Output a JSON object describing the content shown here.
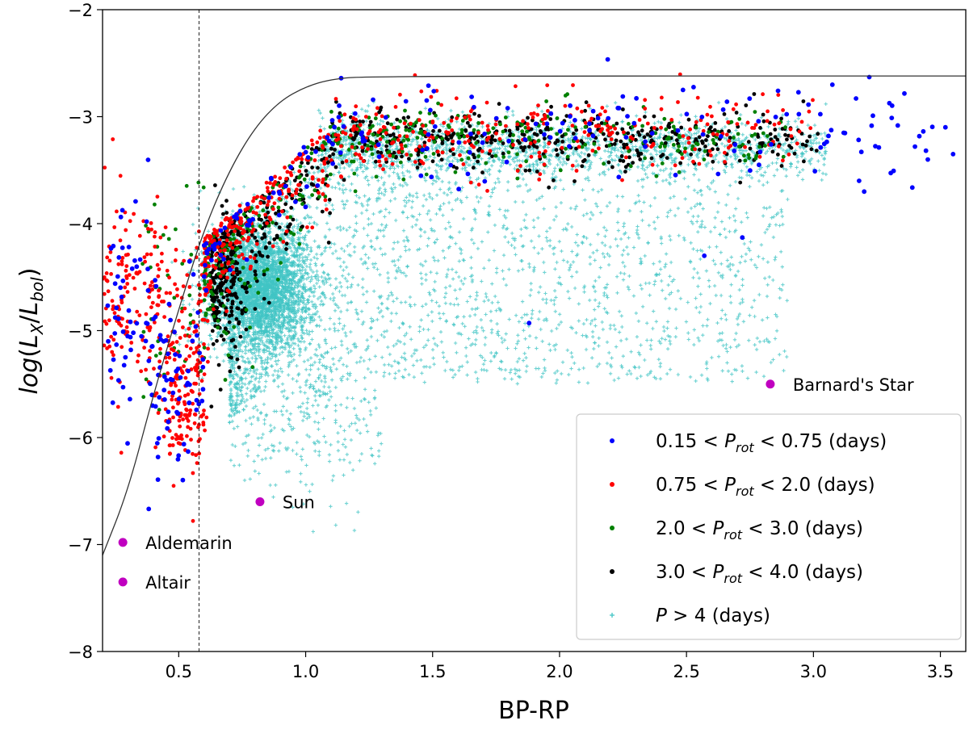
{
  "chart_data": {
    "type": "scatter",
    "xlabel": "BP-RP",
    "ylabel": "log(L_X/L_bol)",
    "xlim": [
      0.2,
      3.6
    ],
    "ylim": [
      -8,
      -2
    ],
    "xticks": [
      "0.5",
      "1.0",
      "1.5",
      "2.0",
      "2.5",
      "3.0",
      "3.5"
    ],
    "yticks": [
      "−8",
      "−7",
      "−6",
      "−5",
      "−4",
      "−3",
      "−2"
    ],
    "grid": false,
    "legend_position": "lower-right",
    "colors": {
      "p1": "#0000ff",
      "p2": "#ff0000",
      "p3": "#008000",
      "p4": "#000000",
      "p5": "#40c4c4",
      "stars": "#c000c0"
    },
    "vertical_line_x": 0.58,
    "saturation_curve": [
      [
        0.2,
        -7.1
      ],
      [
        0.3,
        -6.5
      ],
      [
        0.4,
        -5.6
      ],
      [
        0.5,
        -4.8
      ],
      [
        0.6,
        -4.05
      ],
      [
        0.7,
        -3.5
      ],
      [
        0.8,
        -3.1
      ],
      [
        0.9,
        -2.85
      ],
      [
        1.0,
        -2.72
      ],
      [
        1.1,
        -2.65
      ],
      [
        1.25,
        -2.62
      ],
      [
        3.6,
        -2.62
      ]
    ],
    "series": [
      {
        "name": "0.15 < P_rot < 0.75 (days)",
        "legend_prefix": "0.15 < ",
        "legend_suffix": " < 0.75 (days)",
        "color_key": "p1"
      },
      {
        "name": "0.75 < P_rot < 2.0 (days)",
        "legend_prefix": "0.75 < ",
        "legend_suffix": " < 2.0 (days)",
        "color_key": "p2"
      },
      {
        "name": "2.0 < P_rot < 3.0 (days)",
        "legend_prefix": "2.0 < ",
        "legend_suffix": " < 3.0 (days)",
        "color_key": "p3"
      },
      {
        "name": "3.0 < P_rot < 4.0 (days)",
        "legend_prefix": "3.0 < ",
        "legend_suffix": " < 4.0 (days)",
        "color_key": "p4"
      },
      {
        "name": "P > 4 (days)",
        "legend_prefix": "",
        "legend_suffix": " > 4 (days)",
        "color_key": "p5"
      }
    ],
    "reference_stars": [
      {
        "name": "Barnard's Star",
        "x": 2.83,
        "y": -5.5
      },
      {
        "name": "Sun",
        "x": 0.82,
        "y": -6.6
      },
      {
        "name": "Aldemarin",
        "x": 0.28,
        "y": -6.98
      },
      {
        "name": "Altair",
        "x": 0.28,
        "y": -7.35
      }
    ]
  }
}
